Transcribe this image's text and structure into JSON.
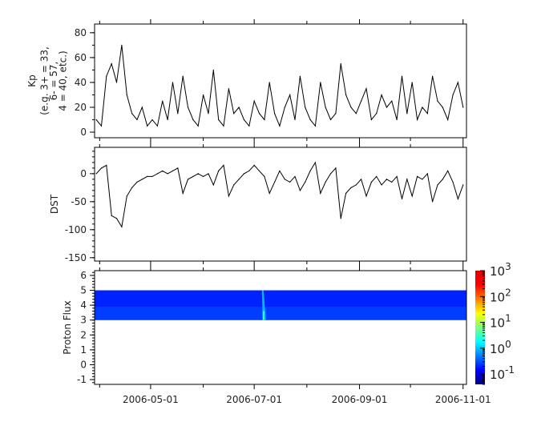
{
  "chart_data": [
    {
      "type": "line",
      "ylabel_lines": [
        "Kp",
        "(e.g. 3+ = 33,",
        "6- = 57,",
        "4 = 40, etc.)"
      ],
      "ylim": [
        -4.5,
        87
      ],
      "yticks": [
        0,
        20,
        40,
        60,
        80
      ],
      "xlim": [
        "2006-03-29",
        "2006-11-03"
      ],
      "grid": false,
      "color": "#000000",
      "x": [
        "2006-03-30",
        "2006-04-02",
        "2006-04-05",
        "2006-04-08",
        "2006-04-11",
        "2006-04-14",
        "2006-04-17",
        "2006-04-20",
        "2006-04-23",
        "2006-04-26",
        "2006-04-29",
        "2006-05-02",
        "2006-05-05",
        "2006-05-08",
        "2006-05-11",
        "2006-05-14",
        "2006-05-17",
        "2006-05-20",
        "2006-05-23",
        "2006-05-26",
        "2006-05-29",
        "2006-06-01",
        "2006-06-04",
        "2006-06-07",
        "2006-06-10",
        "2006-06-13",
        "2006-06-16",
        "2006-06-19",
        "2006-06-22",
        "2006-06-25",
        "2006-06-28",
        "2006-07-01",
        "2006-07-04",
        "2006-07-07",
        "2006-07-10",
        "2006-07-13",
        "2006-07-16",
        "2006-07-19",
        "2006-07-22",
        "2006-07-25",
        "2006-07-28",
        "2006-07-31",
        "2006-08-03",
        "2006-08-06",
        "2006-08-09",
        "2006-08-12",
        "2006-08-15",
        "2006-08-18",
        "2006-08-21",
        "2006-08-24",
        "2006-08-27",
        "2006-08-30",
        "2006-09-02",
        "2006-09-05",
        "2006-09-08",
        "2006-09-11",
        "2006-09-14",
        "2006-09-17",
        "2006-09-20",
        "2006-09-23",
        "2006-09-26",
        "2006-09-29",
        "2006-10-02",
        "2006-10-05",
        "2006-10-08",
        "2006-10-11",
        "2006-10-14",
        "2006-10-17",
        "2006-10-20",
        "2006-10-23",
        "2006-10-26",
        "2006-10-29",
        "2006-11-01"
      ],
      "values": [
        10,
        5,
        45,
        55,
        40,
        70,
        30,
        15,
        10,
        20,
        5,
        10,
        5,
        25,
        10,
        40,
        15,
        45,
        20,
        10,
        5,
        30,
        15,
        50,
        10,
        5,
        35,
        15,
        20,
        10,
        5,
        25,
        15,
        10,
        40,
        15,
        5,
        20,
        30,
        10,
        45,
        20,
        10,
        5,
        40,
        20,
        10,
        15,
        55,
        30,
        20,
        15,
        25,
        35,
        10,
        15,
        30,
        20,
        25,
        10,
        45,
        15,
        40,
        10,
        20,
        15,
        45,
        25,
        20,
        10,
        30,
        40,
        20
      ]
    },
    {
      "type": "line",
      "ylabel": "DST",
      "ylim": [
        -156,
        47
      ],
      "yticks": [
        0,
        -50,
        -100,
        -150
      ],
      "xlim": [
        "2006-03-29",
        "2006-11-03"
      ],
      "grid": false,
      "color": "#000000",
      "values": [
        0,
        10,
        15,
        -75,
        -80,
        -95,
        -40,
        -25,
        -15,
        -10,
        -5,
        -5,
        0,
        5,
        0,
        5,
        10,
        -35,
        -10,
        -5,
        0,
        -5,
        0,
        -20,
        5,
        15,
        -40,
        -20,
        -10,
        0,
        5,
        15,
        5,
        -5,
        -35,
        -15,
        5,
        -10,
        -15,
        -5,
        -30,
        -15,
        5,
        20,
        -35,
        -15,
        0,
        10,
        -80,
        -35,
        -25,
        -20,
        -10,
        -40,
        -15,
        -5,
        -20,
        -10,
        -15,
        -5,
        -45,
        -10,
        -40,
        -5,
        -10,
        0,
        -50,
        -20,
        -10,
        5,
        -15,
        -45,
        -20
      ]
    },
    {
      "type": "heatmap",
      "ylabel": "Proton Flux",
      "ylim": [
        -1.32,
        6.32
      ],
      "yticks": [
        -1,
        0,
        1,
        2,
        3,
        4,
        5,
        6
      ],
      "xlim": [
        "2006-03-29",
        "2006-11-03"
      ],
      "band_y": [
        3,
        5
      ],
      "background_value": 0.2,
      "events": [
        {
          "date": "2006-07-06",
          "value": 3
        }
      ],
      "colorbar": {
        "scale": "log",
        "range": [
          0.04,
          1000
        ],
        "tick_bases": [
          "10",
          "10",
          "10",
          "10",
          "10"
        ],
        "tick_exponents": [
          "3",
          "2",
          "1",
          "0",
          "-1"
        ],
        "colormap": [
          "#00007f",
          "#0000ff",
          "#007fff",
          "#00ffff",
          "#7fff7f",
          "#ffff00",
          "#ff7f00",
          "#ff0000",
          "#e00000"
        ]
      }
    }
  ],
  "xaxis": {
    "tick_labels": [
      "2006-05-01",
      "2006-07-01",
      "2006-09-01",
      "2006-11-01"
    ]
  }
}
